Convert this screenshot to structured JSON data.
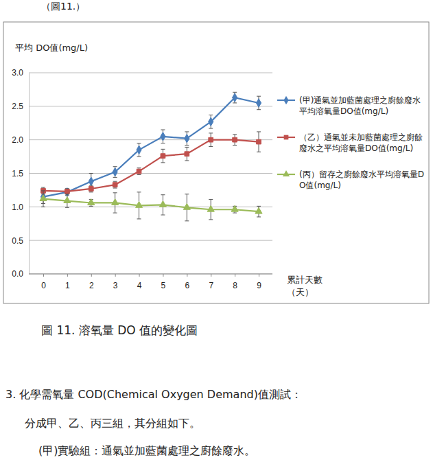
{
  "page": {
    "top_fragment": "（圖11.）",
    "caption": "圖 11. 溶氧量 DO 值的變化圖",
    "heading": "3. 化學需氧量 COD(Chemical Oxygen Demand)值測試：",
    "line1": "分成甲、乙、丙三組，其分組如下。",
    "line2": "(甲)實驗組：通氣並加藍菌處理之廚餘廢水。"
  },
  "chart_data": {
    "type": "line",
    "title": "平均 DO值(mg/L)",
    "xlabel": [
      "累計天數",
      "（天）"
    ],
    "categories": [
      "0",
      "1",
      "2",
      "3",
      "4",
      "5",
      "6",
      "7",
      "8",
      "9"
    ],
    "ylim": [
      0,
      3
    ],
    "yticks": [
      {
        "value": 0,
        "label": "0.0"
      },
      {
        "value": 0.5,
        "label": "0.5"
      },
      {
        "value": 1,
        "label": "1.0"
      },
      {
        "value": 1.5,
        "label": "1.5"
      },
      {
        "value": 2,
        "label": "2.0"
      },
      {
        "value": 2.5,
        "label": "2.5"
      },
      {
        "value": 3,
        "label": "3.0"
      }
    ],
    "grid": true,
    "legend": "right",
    "series": [
      {
        "name": "(甲)通氣並加藍菌處理之廚餘廢水平均溶氧量DO值(mg/L)",
        "color": "#4a7ebb",
        "marker": "diamond",
        "values": [
          1.15,
          1.22,
          1.38,
          1.52,
          1.85,
          2.05,
          2.02,
          2.27,
          2.63,
          2.55
        ],
        "errors": [
          0.1,
          0.05,
          0.12,
          0.08,
          0.1,
          0.1,
          0.1,
          0.1,
          0.08,
          0.1
        ]
      },
      {
        "name": "（乙）通氣並未加藍菌處理之廚餘廢水之平均溶氧量DO值(mg/L)",
        "color": "#c0504d",
        "marker": "square",
        "values": [
          1.24,
          1.23,
          1.27,
          1.33,
          1.53,
          1.76,
          1.79,
          2.0,
          2.0,
          1.97
        ],
        "errors": [
          0.05,
          0.04,
          0.05,
          0.05,
          0.05,
          0.1,
          0.1,
          0.1,
          0.08,
          0.15
        ]
      },
      {
        "name": "(丙）留存之廚餘廢水平均溶氧量DO值(mg/L)",
        "color": "#9bbb59",
        "marker": "triangle",
        "values": [
          1.12,
          1.09,
          1.06,
          1.06,
          1.02,
          1.03,
          0.99,
          0.96,
          0.96,
          0.93
        ],
        "errors": [
          0.12,
          0.1,
          0.05,
          0.15,
          0.2,
          0.15,
          0.2,
          0.15,
          0.05,
          0.08
        ]
      }
    ]
  }
}
